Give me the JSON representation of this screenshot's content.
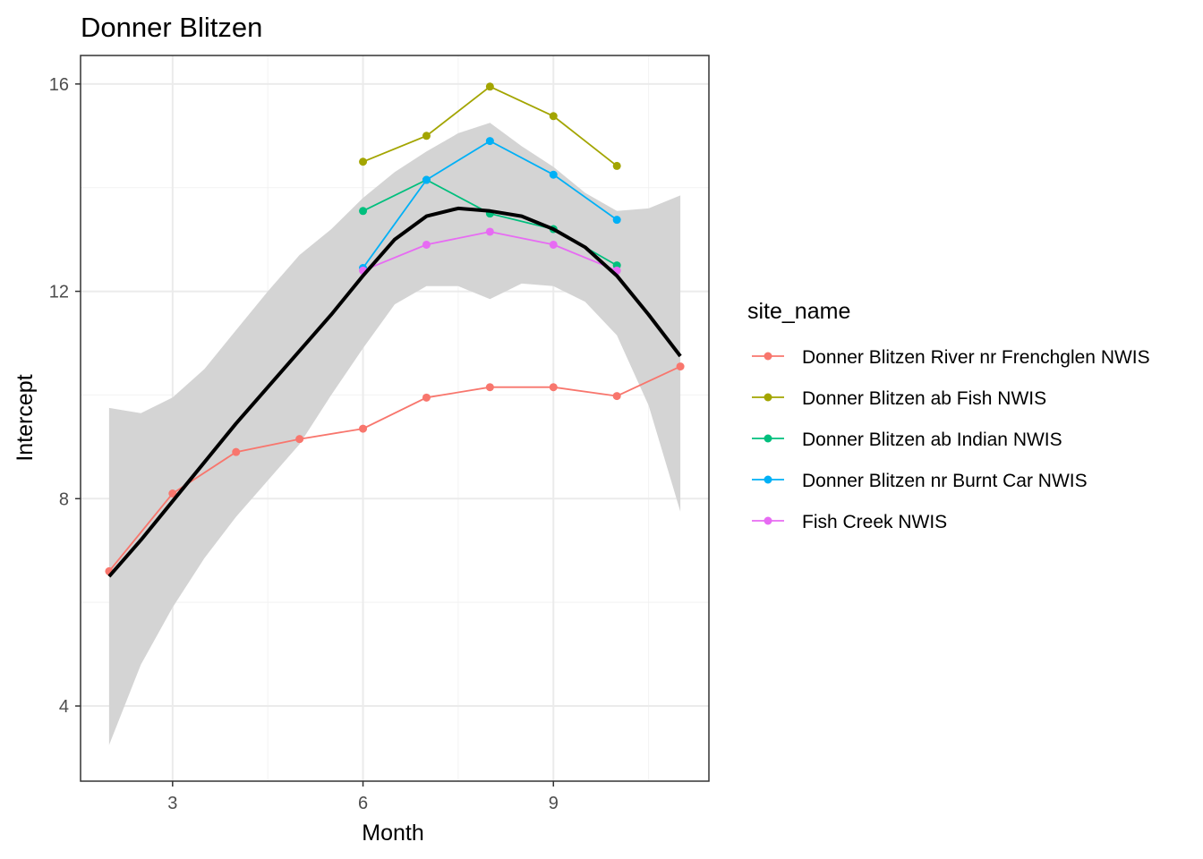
{
  "chart_data": {
    "type": "line",
    "title": "Donner Blitzen",
    "xlabel": "Month",
    "ylabel": "Intercept",
    "xlim": [
      1.55,
      11.45
    ],
    "ylim": [
      2.55,
      16.55
    ],
    "x_ticks": [
      3,
      6,
      9
    ],
    "x_minor": [
      4.5,
      7.5,
      10.5
    ],
    "y_ticks": [
      4,
      8,
      12,
      16
    ],
    "y_minor": [
      6,
      10,
      14
    ],
    "legend_title": "site_name",
    "legend_position": "right",
    "series": [
      {
        "name": "Donner Blitzen River nr Frenchglen NWIS",
        "color": "#F8766D",
        "x": [
          2,
          3,
          4,
          5,
          6,
          7,
          8,
          9,
          10,
          11
        ],
        "values": [
          6.6,
          8.1,
          8.9,
          9.15,
          9.35,
          9.95,
          10.15,
          10.15,
          9.98,
          10.55
        ]
      },
      {
        "name": "Donner Blitzen ab Fish NWIS",
        "color": "#A3A500",
        "x": [
          6,
          7,
          8,
          9,
          10
        ],
        "values": [
          14.5,
          15.0,
          15.95,
          15.38,
          14.42
        ]
      },
      {
        "name": "Donner Blitzen ab Indian NWIS",
        "color": "#00BF7D",
        "x": [
          6,
          7,
          8,
          9,
          10
        ],
        "values": [
          13.55,
          14.15,
          13.5,
          13.2,
          12.5
        ]
      },
      {
        "name": "Donner Blitzen nr Burnt Car NWIS",
        "color": "#00B0F6",
        "x": [
          6,
          7,
          8,
          9,
          10
        ],
        "values": [
          12.45,
          14.15,
          14.9,
          14.25,
          13.38
        ]
      },
      {
        "name": "Fish Creek NWIS",
        "color": "#E76BF3",
        "x": [
          6,
          7,
          8,
          9,
          10
        ],
        "values": [
          12.4,
          12.9,
          13.15,
          12.9,
          12.4
        ]
      }
    ],
    "smooth": {
      "color": "#000000",
      "band_color": "#D4D4D4",
      "x": [
        2,
        2.5,
        3,
        3.5,
        4,
        4.5,
        5,
        5.5,
        6,
        6.5,
        7,
        7.5,
        8,
        8.5,
        9,
        9.5,
        10,
        10.5,
        11
      ],
      "y": [
        6.5,
        7.2,
        7.95,
        8.7,
        9.45,
        10.15,
        10.85,
        11.55,
        12.3,
        13.0,
        13.45,
        13.6,
        13.55,
        13.45,
        13.2,
        12.85,
        12.3,
        11.55,
        10.75
      ],
      "lower": [
        3.25,
        4.8,
        5.9,
        6.85,
        7.65,
        8.35,
        9.05,
        10.0,
        10.9,
        11.75,
        12.1,
        12.1,
        11.85,
        12.15,
        12.1,
        11.8,
        11.15,
        9.8,
        7.75
      ],
      "upper": [
        9.75,
        9.65,
        9.95,
        10.5,
        11.25,
        12.0,
        12.7,
        13.2,
        13.8,
        14.3,
        14.7,
        15.05,
        15.25,
        14.8,
        14.4,
        13.9,
        13.55,
        13.6,
        13.85
      ]
    }
  }
}
